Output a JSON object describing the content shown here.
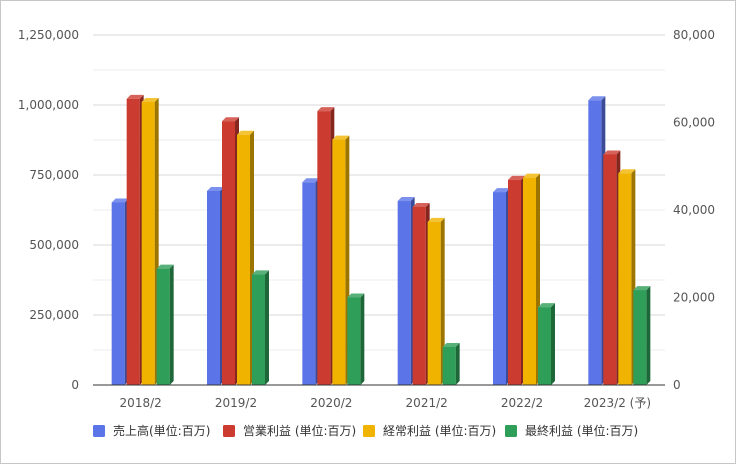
{
  "chart_data": {
    "type": "bar",
    "categories": [
      "2018/2",
      "2019/2",
      "2020/2",
      "2021/2",
      "2022/2",
      "2023/2 (予)"
    ],
    "series": [
      {
        "name": "売上高(単位:百万)",
        "axis": "left",
        "color": "#5b74e8",
        "values": [
          652000,
          693000,
          724000,
          657000,
          689000,
          1017000
        ]
      },
      {
        "name": "営業利益 (単位:百万)",
        "axis": "right",
        "color": "#cc3b2f",
        "values": [
          65400,
          60300,
          62600,
          40700,
          46900,
          52700
        ]
      },
      {
        "name": "経常利益 (単位:百万)",
        "axis": "right",
        "color": "#f0b400",
        "values": [
          64700,
          57200,
          56100,
          37300,
          47400,
          48400
        ]
      },
      {
        "name": "最終利益 (単位:百万)",
        "axis": "right",
        "color": "#2e9e58",
        "values": [
          26600,
          25300,
          20000,
          8700,
          17800,
          21700
        ]
      }
    ],
    "left_axis": {
      "ylim": [
        0,
        1250000
      ],
      "ticks": [
        0,
        250000,
        500000,
        750000,
        1000000,
        1250000
      ],
      "tick_labels": [
        "0",
        "250,000",
        "500,000",
        "750,000",
        "1,000,000",
        "1,250,000"
      ]
    },
    "right_axis": {
      "ylim": [
        0,
        80000
      ],
      "ticks": [
        0,
        20000,
        40000,
        60000,
        80000
      ],
      "tick_labels": [
        "0",
        "20,000",
        "40,000",
        "60,000",
        "80,000"
      ]
    },
    "grid": true,
    "legend_position": "bottom",
    "style": "3d-bar"
  }
}
